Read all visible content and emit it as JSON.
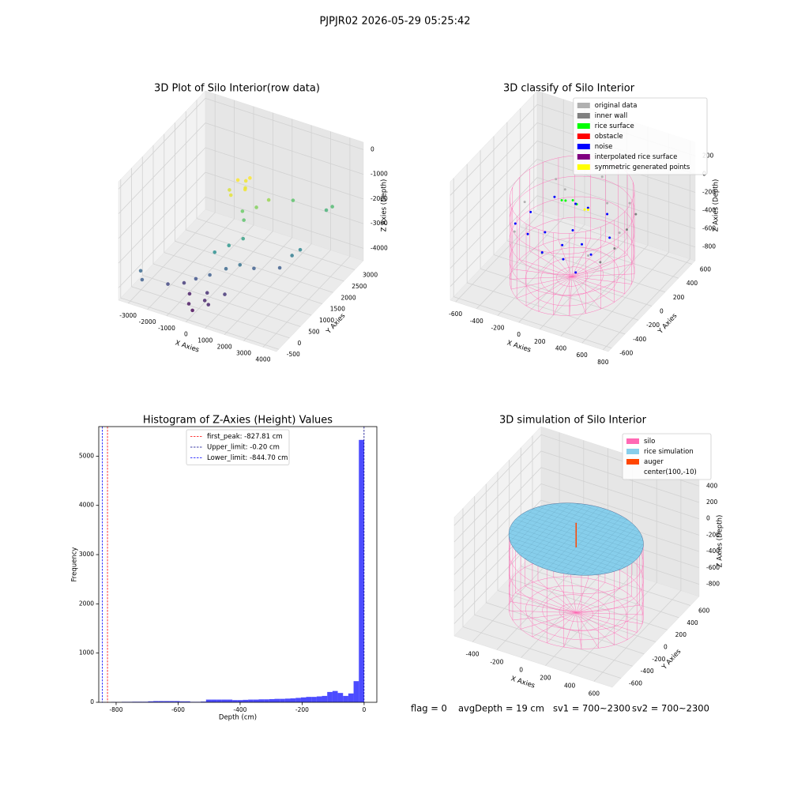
{
  "title": "PJPJR02 2026-05-29 05:25:42",
  "chart_data": [
    {
      "type": "scatter3d",
      "title": "3D Plot of Silo Interior(row data)",
      "xlabel": "X Axies",
      "ylabel": "Y Axies",
      "zlabel": "Z Axies (Depth)",
      "xlim": [
        -3500,
        4700
      ],
      "ylim": [
        -600,
        3400
      ],
      "zlim": [
        -4500,
        300
      ],
      "xticks": [
        -3000,
        -2000,
        -1000,
        0,
        1000,
        2000,
        3000,
        4000
      ],
      "yticks": [
        -500,
        0,
        500,
        1000,
        1500,
        2000,
        2500,
        3000
      ],
      "zticks": [
        -4000,
        -3000,
        -2000,
        -1000,
        0
      ],
      "colormap": "viridis",
      "x": [
        -800,
        -500,
        -300,
        -900,
        -600,
        -200,
        -400,
        0,
        300,
        500,
        800,
        1500,
        3200,
        3000,
        200,
        600,
        2500,
        2800,
        3000,
        -200,
        -2800,
        -2500,
        -1500,
        -1000,
        -500,
        0,
        500,
        1000,
        1500,
        -300,
        0,
        300,
        -600,
        200,
        600,
        1000
      ],
      "y": [
        2500,
        2600,
        2400,
        2200,
        2000,
        2300,
        2700,
        2000,
        1800,
        2200,
        2500,
        3000,
        3300,
        3200,
        1200,
        1500,
        1500,
        1800,
        2000,
        900,
        -200,
        -400,
        -100,
        200,
        300,
        500,
        800,
        1000,
        1200,
        -200,
        -300,
        0,
        100,
        200,
        -100,
        300
      ],
      "z": [
        -1800,
        -1850,
        -1900,
        -1950,
        -1900,
        -1850,
        -1800,
        -2400,
        -2500,
        -2300,
        -2200,
        -2500,
        -2600,
        -2700,
        -3000,
        -2900,
        -3600,
        -3300,
        -3200,
        -3100,
        -3500,
        -3600,
        -3800,
        -3900,
        -3700,
        -3600,
        -3500,
        -3400,
        -3600,
        -4200,
        -4300,
        -4100,
        -4150,
        -4000,
        -4100,
        -3950
      ]
    },
    {
      "type": "scatter3d",
      "title": "3D classify of Silo Interior",
      "xlabel": "X Axies",
      "ylabel": "Y Axies",
      "zlabel": "Z Axies (Depth)",
      "xlim": [
        -650,
        850
      ],
      "ylim": [
        -650,
        650
      ],
      "zlim": [
        -950,
        350
      ],
      "xticks": [
        -600,
        -400,
        -200,
        0,
        200,
        400,
        600,
        800
      ],
      "yticks": [
        -600,
        -400,
        -200,
        0,
        200,
        400,
        600
      ],
      "zticks": [
        -800,
        -600,
        -400,
        -200,
        0,
        200
      ],
      "legend": "upper right",
      "cylinder": {
        "color": "#ff69b4",
        "center_x": 100,
        "center_y": -10,
        "radius": 500,
        "zlim": [
          -900,
          0
        ]
      },
      "series": [
        {
          "name": "original data",
          "color": "#b0b0b0",
          "x": [
            550,
            450,
            100,
            -250,
            -350,
            -250,
            100,
            450,
            300,
            -100
          ],
          "y": [
            -10,
            300,
            440,
            300,
            -10,
            -320,
            -460,
            -320,
            200,
            200
          ],
          "z": [
            -250,
            -200,
            -150,
            -200,
            -250,
            -300,
            -300,
            -300,
            -180,
            -180
          ]
        },
        {
          "name": "inner wall",
          "color": "#808080",
          "x": [
            550,
            560,
            540,
            520
          ],
          "y": [
            100,
            -100,
            250,
            -250
          ],
          "z": [
            -300,
            -350,
            -250,
            -400
          ]
        },
        {
          "name": "rice surface",
          "color": "#00ff00",
          "x": [
            0,
            50,
            100,
            -30
          ],
          "y": [
            50,
            80,
            60,
            40
          ],
          "z": [
            -150,
            -150,
            -160,
            -150
          ]
        },
        {
          "name": "obstacle",
          "color": "#ff0000",
          "x": [],
          "y": [],
          "z": []
        },
        {
          "name": "noise",
          "color": "#0000ff",
          "x": [
            -300,
            -200,
            0,
            200,
            400,
            450,
            300,
            0,
            -200,
            100,
            -100,
            250,
            0,
            150,
            -350,
            350
          ],
          "y": [
            0,
            -200,
            -300,
            -300,
            -200,
            0,
            200,
            200,
            200,
            0,
            -100,
            -100,
            0,
            150,
            -150,
            -350
          ],
          "z": [
            -350,
            -400,
            -450,
            -450,
            -400,
            -350,
            -300,
            -300,
            -300,
            -400,
            -420,
            -420,
            -600,
            -250,
            -380,
            -500
          ]
        },
        {
          "name": "interpolated rice surface",
          "color": "#800080",
          "x": [],
          "y": [],
          "z": []
        },
        {
          "name": "symmetric generated points",
          "color": "#ffff00",
          "x": [
            200,
            220
          ],
          "y": [
            20,
            40
          ],
          "z": [
            -150,
            -160
          ]
        }
      ]
    },
    {
      "type": "histogram",
      "title": "Histogram of Z-Axies (Height) Values",
      "xlabel": "Depth (cm)",
      "ylabel": "Frequency",
      "xlim": [
        -856,
        41
      ],
      "ylim": [
        0,
        5600
      ],
      "xticks": [
        -800,
        -600,
        -400,
        -200,
        0
      ],
      "yticks": [
        0,
        1000,
        2000,
        3000,
        4000,
        5000
      ],
      "color": "#0000ff",
      "alpha": 0.7,
      "legend": "upper center",
      "bins": [
        -850,
        -833,
        -816,
        -799,
        -782,
        -765,
        -748,
        -731,
        -714,
        -697,
        -680,
        -663,
        -646,
        -629,
        -612,
        -595,
        -578,
        -561,
        -544,
        -527,
        -510,
        -493,
        -476,
        -459,
        -442,
        -425,
        -408,
        -391,
        -374,
        -357,
        -340,
        -323,
        -306,
        -289,
        -272,
        -255,
        -238,
        -221,
        -204,
        -187,
        -170,
        -153,
        -136,
        -119,
        -102,
        -85,
        -68,
        -51,
        -34,
        -17,
        0
      ],
      "counts": [
        5,
        0,
        8,
        5,
        10,
        10,
        12,
        12,
        12,
        20,
        25,
        25,
        25,
        25,
        25,
        20,
        20,
        10,
        10,
        15,
        55,
        55,
        55,
        55,
        55,
        45,
        45,
        50,
        55,
        55,
        60,
        60,
        65,
        70,
        70,
        75,
        80,
        90,
        100,
        110,
        110,
        120,
        130,
        210,
        230,
        190,
        130,
        180,
        430,
        5330
      ],
      "lines": [
        {
          "label": "first_peak: -827.81 cm",
          "value": -827.81,
          "color": "#ff0000"
        },
        {
          "label": "Upper_limit: -0.20 cm",
          "value": -0.2,
          "color": "#00008b"
        },
        {
          "label": "Lower_limit: -844.70 cm",
          "value": -844.7,
          "color": "#0000ff"
        }
      ]
    },
    {
      "type": "surface3d",
      "title": "3D simulation of Silo Interior",
      "xlabel": "X Axies",
      "ylabel": "Y Axies",
      "zlabel": "Z Axies (Depth)",
      "xlim": [
        -550,
        750
      ],
      "ylim": [
        -750,
        750
      ],
      "zlim": [
        -950,
        500
      ],
      "xticks": [
        -400,
        -200,
        0,
        200,
        400,
        600
      ],
      "yticks": [
        -600,
        -400,
        -200,
        0,
        200,
        400,
        600
      ],
      "zticks": [
        -800,
        -600,
        -400,
        -200,
        0,
        200,
        400
      ],
      "legend": "upper right",
      "series": [
        {
          "name": "silo",
          "color": "#ff69b4",
          "center_x": 100,
          "center_y": -10,
          "radius": 500,
          "zlim": [
            -900,
            0
          ]
        },
        {
          "name": "rice simulation",
          "color": "#87ceeb",
          "center_x": 100,
          "center_y": -10,
          "radius": 500,
          "z": 0
        },
        {
          "name": "auger",
          "color": "#ff4500",
          "x": [
            100,
            100
          ],
          "y": [
            -10,
            -10
          ],
          "z": [
            200,
            -100
          ]
        },
        {
          "name": "center(100,-10)"
        }
      ],
      "annotations": [
        "flag = 0",
        "avgDepth = 19 cm",
        "sv1 = 700~2300",
        "sv2 = 700~2300"
      ]
    }
  ]
}
